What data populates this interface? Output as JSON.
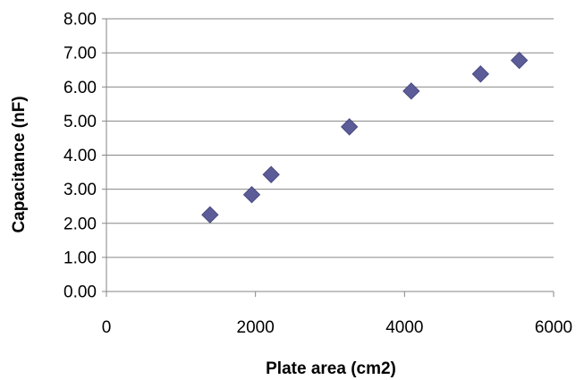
{
  "chart_data": {
    "type": "scatter",
    "title": "",
    "xlabel": "Plate area (cm2)",
    "ylabel": "Capacitance (nF)",
    "xlim": [
      0,
      6000
    ],
    "ylim": [
      0,
      8
    ],
    "x_ticks": [
      "0",
      "2000",
      "4000",
      "6000"
    ],
    "y_ticks": [
      "0.00",
      "1.00",
      "2.00",
      "3.00",
      "4.00",
      "5.00",
      "6.00",
      "7.00",
      "8.00"
    ],
    "grid": "horizontal",
    "legend": "none",
    "marker": "diamond",
    "marker_color": "#5b5c98",
    "series": [
      {
        "x": [
          1390,
          1950,
          2210,
          3260,
          4090,
          5020,
          5540
        ],
        "y": [
          2.25,
          2.84,
          3.43,
          4.83,
          5.88,
          6.38,
          6.78
        ]
      }
    ]
  }
}
